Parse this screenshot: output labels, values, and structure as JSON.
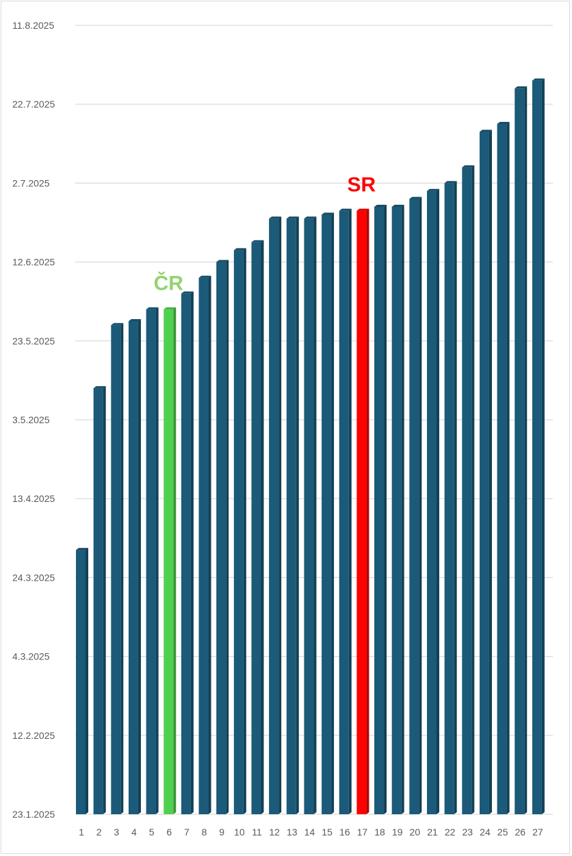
{
  "chart_data": {
    "type": "bar",
    "title": "",
    "xlabel": "",
    "ylabel": "",
    "categories": [
      "1",
      "2",
      "3",
      "4",
      "5",
      "6",
      "7",
      "8",
      "9",
      "10",
      "11",
      "12",
      "13",
      "14",
      "15",
      "16",
      "17",
      "18",
      "19",
      "20",
      "21",
      "22",
      "23",
      "24",
      "25",
      "26",
      "27"
    ],
    "values": [
      "2025-03-31",
      "2025-05-11",
      "2025-05-27",
      "2025-05-28",
      "2025-05-31",
      "2025-05-31",
      "2025-06-04",
      "2025-06-08",
      "2025-06-12",
      "2025-06-15",
      "2025-06-17",
      "2025-06-23",
      "2025-06-23",
      "2025-06-23",
      "2025-06-24",
      "2025-06-25",
      "2025-06-25",
      "2025-06-26",
      "2025-06-26",
      "2025-06-28",
      "2025-06-30",
      "2025-07-02",
      "2025-07-06",
      "2025-07-15",
      "2025-07-17",
      "2025-07-26",
      "2025-07-28"
    ],
    "ylim": [
      "2025-01-23",
      "2025-08-11"
    ],
    "y_ticks": [
      "23.1.2025",
      "12.2.2025",
      "4.3.2025",
      "24.3.2025",
      "13.4.2025",
      "3.5.2025",
      "23.5.2025",
      "12.6.2025",
      "2.7.2025",
      "22.7.2025",
      "11.8.2025"
    ],
    "y_tick_values": [
      "2025-01-23",
      "2025-02-12",
      "2025-03-04",
      "2025-03-24",
      "2025-04-13",
      "2025-05-03",
      "2025-05-23",
      "2025-06-12",
      "2025-07-02",
      "2025-07-22",
      "2025-08-11"
    ],
    "grid": true,
    "colors": {
      "default": "#1b5a78",
      "highlight_cr": "#4fd14f",
      "highlight_sr": "#ff0000",
      "grid": "#d9d9d9"
    },
    "highlights": [
      {
        "index": 5,
        "label": "ČR",
        "color": "#92d36e",
        "bar_color": "#4fd14f"
      },
      {
        "index": 16,
        "label": "SR",
        "color": "#ff0000",
        "bar_color": "#ff0000"
      }
    ]
  }
}
